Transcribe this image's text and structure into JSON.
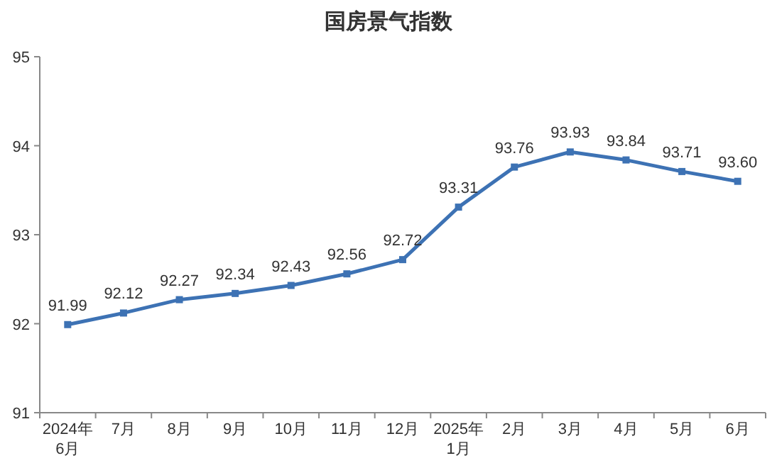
{
  "chart_data": {
    "type": "line",
    "title": "国房景气指数",
    "categories": [
      "2024年\n6月",
      "7月",
      "8月",
      "9月",
      "10月",
      "11月",
      "12月",
      "2025年\n1月",
      "2月",
      "3月",
      "4月",
      "5月",
      "6月"
    ],
    "values": [
      91.99,
      92.12,
      92.27,
      92.34,
      92.43,
      92.56,
      92.72,
      93.31,
      93.76,
      93.93,
      93.84,
      93.71,
      93.6
    ],
    "color": "#3d72b4",
    "ylim": [
      91,
      95
    ],
    "yticks": [
      91,
      92,
      93,
      94,
      95
    ],
    "value_labels": [
      "91.99",
      "92.12",
      "92.27",
      "92.34",
      "92.43",
      "92.56",
      "92.72",
      "93.31",
      "93.76",
      "93.93",
      "93.84",
      "93.71",
      "93.60"
    ],
    "marker": "square"
  }
}
